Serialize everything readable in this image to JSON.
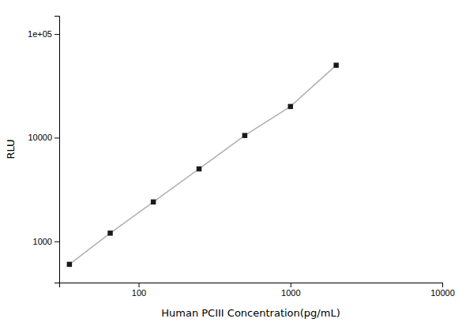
{
  "chart_data": {
    "type": "line",
    "x": [
      35,
      65,
      125,
      250,
      500,
      1000,
      2000
    ],
    "series": [
      {
        "type": "line",
        "color": "#b0b0b0",
        "values": [
          600,
          1200,
          2400,
          5000,
          10500,
          20000,
          50000
        ]
      },
      {
        "type": "scatter",
        "color": "#1a1a1a",
        "marker": "square",
        "values": [
          600,
          1200,
          2400,
          5000,
          10500,
          20000,
          50000
        ]
      }
    ],
    "xlabel": "Human PCIII Concentration(pg/mL)",
    "ylabel": "RLU",
    "xlim": [
      30,
      10000
    ],
    "ylim": [
      400,
      150000
    ],
    "xticks": [
      100,
      1000,
      10000
    ],
    "yticks": [
      1000,
      10000,
      {
        "value": 100000,
        "label": "1e+05"
      }
    ],
    "log": true,
    "grid": false
  }
}
